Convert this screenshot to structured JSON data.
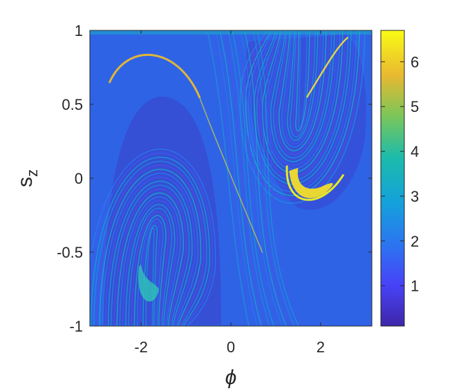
{
  "chart_data": {
    "type": "heatmap",
    "title": "",
    "xlabel": "ϕ",
    "ylabel": "s",
    "ylabel_subscript": "z",
    "xlim": [
      -3.14159,
      3.14159
    ],
    "ylim": [
      -1,
      1
    ],
    "x_ticks": [
      {
        "value": -2,
        "label": "-2"
      },
      {
        "value": 0,
        "label": "0"
      },
      {
        "value": 2,
        "label": "2"
      }
    ],
    "y_ticks": [
      {
        "value": -1,
        "label": "-1"
      },
      {
        "value": -0.5,
        "label": "-0.5"
      },
      {
        "value": 0,
        "label": "0"
      },
      {
        "value": 0.5,
        "label": "0.5"
      },
      {
        "value": 1,
        "label": "1"
      }
    ],
    "colorbar": {
      "colormap": "parula",
      "range": [
        0.1,
        6.7
      ],
      "ticks": [
        {
          "value": 1,
          "label": "1"
        },
        {
          "value": 2,
          "label": "2"
        },
        {
          "value": 3,
          "label": "3"
        },
        {
          "value": 4,
          "label": "4"
        },
        {
          "value": 5,
          "label": "5"
        },
        {
          "value": 6,
          "label": "6"
        }
      ]
    },
    "grid": false,
    "features": [
      {
        "name": "high-value-yellow-band",
        "phi": 1.3,
        "s_z": 0.0,
        "value": 6.3
      },
      {
        "name": "upper-left-yellow-arc",
        "phi": -1.7,
        "s_z": 0.85,
        "value": 5.5
      },
      {
        "name": "lower-left-cyan-blob",
        "phi": -1.9,
        "s_z": -0.75,
        "value": 3.2
      }
    ]
  }
}
